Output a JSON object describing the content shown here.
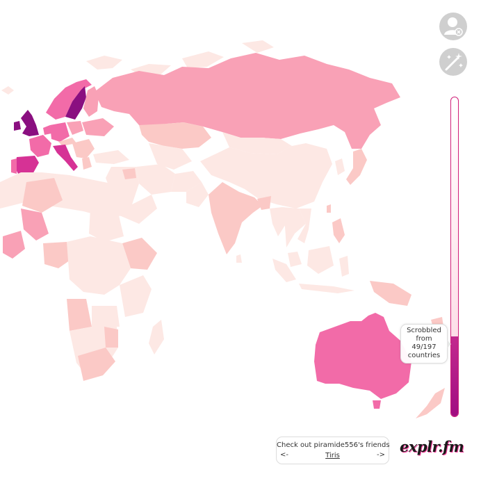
{
  "colors": {
    "none": "#fde8e4",
    "level_1": "#fbc9c6",
    "level_2": "#f9a1b6",
    "level_3": "#f26ba8",
    "level_4": "#d63295",
    "level_5": "#8a0f80",
    "accent": "#d01f78"
  },
  "controls": {
    "user_button_icon": "user-remove-icon",
    "wand_button_icon": "magic-wand-icon"
  },
  "scale": {
    "tooltip": {
      "line1": "Scrobbled",
      "line2": "from",
      "line3": "49/197",
      "line4": "countries"
    },
    "fill_fraction": 0.25
  },
  "friends": {
    "title": "Check out piramide556's friends",
    "prev": "<-",
    "next": "->",
    "current": "Tiris"
  },
  "logo": {
    "text": "explr.fm"
  }
}
